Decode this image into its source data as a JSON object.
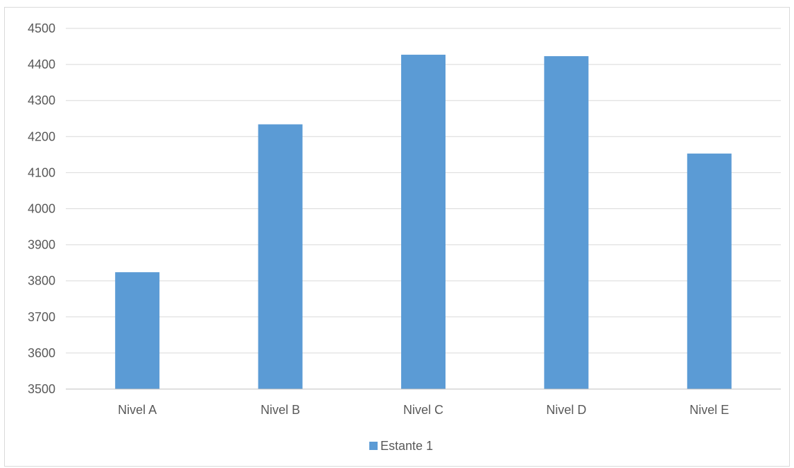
{
  "chart_data": {
    "type": "bar",
    "title": "",
    "xlabel": "",
    "ylabel": "",
    "categories": [
      "Nivel A",
      "Nivel B",
      "Nivel C",
      "Nivel D",
      "Nivel E"
    ],
    "series": [
      {
        "name": "Estante 1",
        "values": [
          3824,
          4234,
          4427,
          4423,
          4153
        ],
        "color": "#5B9BD5"
      }
    ],
    "ylim": [
      3500,
      4500
    ],
    "yticks": [
      3500,
      3600,
      3700,
      3800,
      3900,
      4000,
      4100,
      4200,
      4300,
      4400,
      4500
    ],
    "grid": true,
    "legend_position": "bottom"
  }
}
